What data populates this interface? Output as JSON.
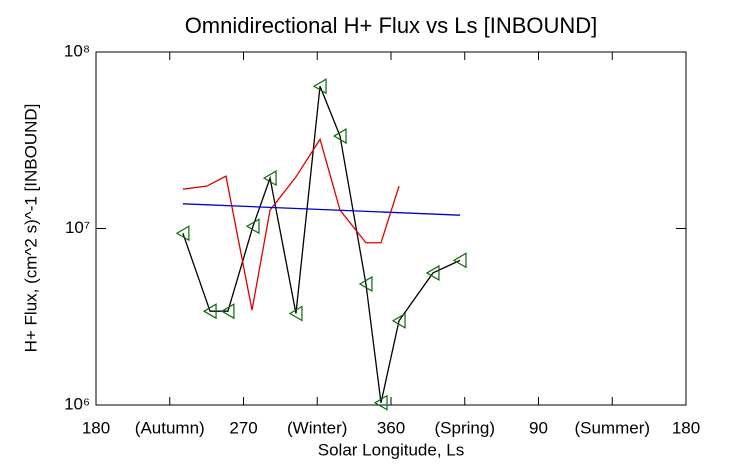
{
  "chart_data": {
    "type": "line",
    "title": "Omnidirectional H+ Flux vs Ls [INBOUND]",
    "xlabel": "Solar Longitude, Ls",
    "ylabel": "H+ Flux, (cm^2 s)^-1 [INBOUND]",
    "xlim": [
      180,
      540
    ],
    "xticks": [
      180,
      {
        "value": 225,
        "label": "(Autumn)"
      },
      270,
      {
        "value": 315,
        "label": "(Winter)"
      },
      360,
      {
        "value": 405,
        "label": "(Spring)"
      },
      {
        "value": 450,
        "label": "90"
      },
      {
        "value": 495,
        "label": "(Summer)"
      },
      {
        "value": 540,
        "label": "180"
      }
    ],
    "ylim": [
      1000000,
      100000000
    ],
    "yscale": "log",
    "yticks": [
      {
        "value": 1000000,
        "label": "10⁶"
      },
      {
        "value": 10000000,
        "label": "10⁷"
      },
      {
        "value": 100000000,
        "label": "10⁸"
      }
    ],
    "series": [
      {
        "color": "#000000",
        "marker": "triangle-left",
        "marker_color": "#0a6b0a",
        "x": [
          233,
          249.6,
          260.5,
          275.8,
          286.2,
          302,
          316.7,
          328.9,
          344.7,
          353.9,
          364.9,
          385.6,
          402.1
        ],
        "values": [
          9400000,
          3400000,
          3400000,
          10300000,
          19300000,
          3300000,
          64000000,
          33400000,
          4850000,
          1030000,
          3000000,
          5600000,
          6600000
        ]
      },
      {
        "color": "#e00000",
        "x": [
          233,
          247.7,
          259.3,
          275.2,
          286.2,
          302,
          316.7,
          328.9,
          344.7,
          353.9,
          364.9
        ],
        "values": [
          16700000,
          17400000,
          19800000,
          3450000,
          12700000,
          19600000,
          32000000,
          12700000,
          8300000,
          8300000,
          17400000
        ]
      },
      {
        "color": "#0000cc",
        "x": [
          233,
          402.1
        ],
        "values": [
          13800000,
          11900000
        ]
      }
    ]
  }
}
